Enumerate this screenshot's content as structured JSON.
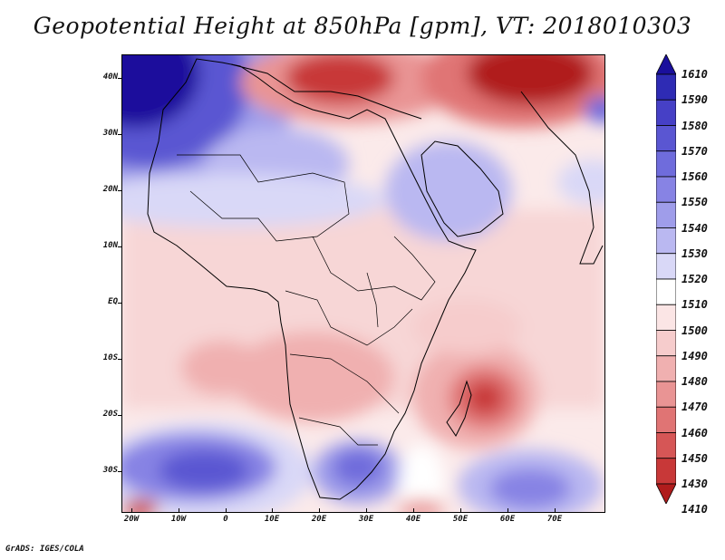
{
  "title": "Geopotential Height at 850hPa [gpm], VT: 2018010303",
  "latitude_labels": [
    "40N",
    "30N",
    "20N",
    "10N",
    "EQ",
    "10S",
    "20S",
    "30S"
  ],
  "longitude_labels": [
    "20W",
    "10W",
    "0",
    "10E",
    "20E",
    "30E",
    "40E",
    "50E",
    "60E",
    "70E"
  ],
  "colorbar": {
    "levels": [
      "1610",
      "1590",
      "1580",
      "1570",
      "1560",
      "1550",
      "1540",
      "1530",
      "1520",
      "1510",
      "1500",
      "1490",
      "1480",
      "1470",
      "1460",
      "1450",
      "1430",
      "1410"
    ],
    "colors": [
      "#1a0f9c",
      "#2e2bb4",
      "#4640c6",
      "#5a56d2",
      "#6f6cdc",
      "#8783e4",
      "#9f9dea",
      "#bab8f1",
      "#d9d8f7",
      "#ffffff",
      "#fbe5e5",
      "#f6cccc",
      "#f0b0b0",
      "#e99494",
      "#e07474",
      "#d65656",
      "#c83838",
      "#b01c1c"
    ]
  },
  "footer": "GrADS: IGES/COLA"
}
